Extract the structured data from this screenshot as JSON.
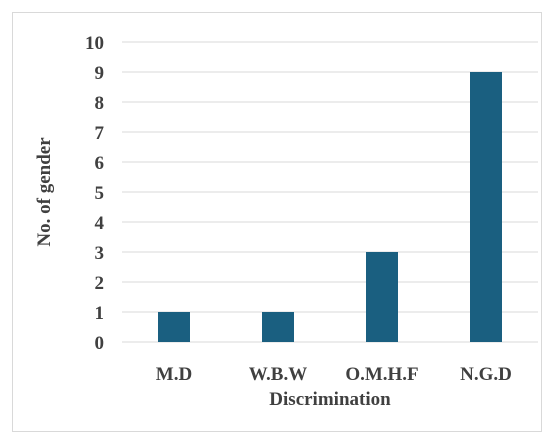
{
  "chart_data": {
    "type": "bar",
    "title": "",
    "xlabel": "Discrimination",
    "ylabel": "No. of gender",
    "categories": [
      "M.D",
      "W.B.W",
      "O.M.H.F",
      "N.G.D"
    ],
    "values": [
      1,
      1,
      3,
      9
    ],
    "ylim": [
      0,
      10
    ],
    "yticks": [
      "0",
      "1",
      "2",
      "3",
      "4",
      "5",
      "6",
      "7",
      "8",
      "9",
      "10"
    ],
    "grid": true,
    "legend": "none",
    "bar_color": "#1a5f80",
    "grid_color": "#d9d9d9"
  }
}
